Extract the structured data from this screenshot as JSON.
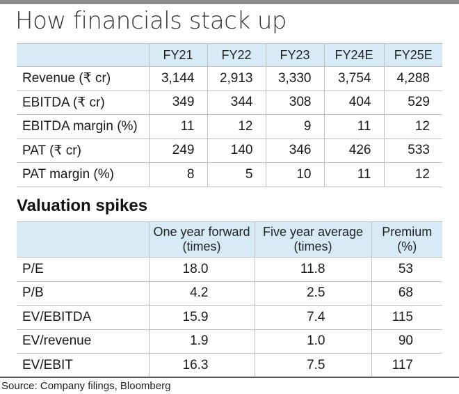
{
  "title": "How financials stack up",
  "financials": {
    "columns": [
      "FY21",
      "FY22",
      "FY23",
      "FY24E",
      "FY25E"
    ],
    "rows": [
      {
        "label": "Revenue (₹ cr)",
        "values": [
          "3,144",
          "2,913",
          "3,330",
          "3,754",
          "4,288"
        ]
      },
      {
        "label": "EBITDA (₹ cr)",
        "values": [
          "349",
          "344",
          "308",
          "404",
          "529"
        ]
      },
      {
        "label": "EBITDA margin (%)",
        "values": [
          "11",
          "12",
          "9",
          "11",
          "12"
        ]
      },
      {
        "label": "PAT (₹ cr)",
        "values": [
          "249",
          "140",
          "346",
          "426",
          "533"
        ]
      },
      {
        "label": "PAT margin (%)",
        "values": [
          "8",
          "5",
          "10",
          "11",
          "12"
        ]
      }
    ]
  },
  "valuation": {
    "subtitle": "Valuation spikes",
    "columns": [
      {
        "line1": "One year forward",
        "line2": "(times)"
      },
      {
        "line1": "Five year average",
        "line2": "(times)"
      },
      {
        "line1": "Premium",
        "line2": "(%)"
      }
    ],
    "rows": [
      {
        "label": "P/E",
        "values": [
          "18.0",
          "11.8",
          "53"
        ]
      },
      {
        "label": "P/B",
        "values": [
          "4.2",
          "2.5",
          "68"
        ]
      },
      {
        "label": "EV/EBITDA",
        "values": [
          "15.9",
          "7.4",
          "115"
        ]
      },
      {
        "label": "EV/revenue",
        "values": [
          "1.9",
          "1.0",
          "90"
        ]
      },
      {
        "label": "EV/EBIT",
        "values": [
          "16.3",
          "7.5",
          "117"
        ]
      }
    ]
  },
  "source": "Source: Company filings, Bloomberg",
  "chart_data": [
    {
      "type": "table",
      "title": "How financials stack up",
      "columns": [
        "FY21",
        "FY22",
        "FY23",
        "FY24E",
        "FY25E"
      ],
      "rows": [
        "Revenue (₹ cr)",
        "EBITDA (₹ cr)",
        "EBITDA margin (%)",
        "PAT (₹ cr)",
        "PAT margin (%)"
      ],
      "values": [
        [
          3144,
          2913,
          3330,
          3754,
          4288
        ],
        [
          349,
          344,
          308,
          404,
          529
        ],
        [
          11,
          12,
          9,
          11,
          12
        ],
        [
          249,
          140,
          346,
          426,
          533
        ],
        [
          8,
          5,
          10,
          11,
          12
        ]
      ]
    },
    {
      "type": "table",
      "title": "Valuation spikes",
      "columns": [
        "One year forward (times)",
        "Five year average (times)",
        "Premium (%)"
      ],
      "rows": [
        "P/E",
        "P/B",
        "EV/EBITDA",
        "EV/revenue",
        "EV/EBIT"
      ],
      "values": [
        [
          18.0,
          11.8,
          53
        ],
        [
          4.2,
          2.5,
          68
        ],
        [
          15.9,
          7.4,
          115
        ],
        [
          1.9,
          1.0,
          90
        ],
        [
          16.3,
          7.5,
          117
        ]
      ]
    }
  ]
}
